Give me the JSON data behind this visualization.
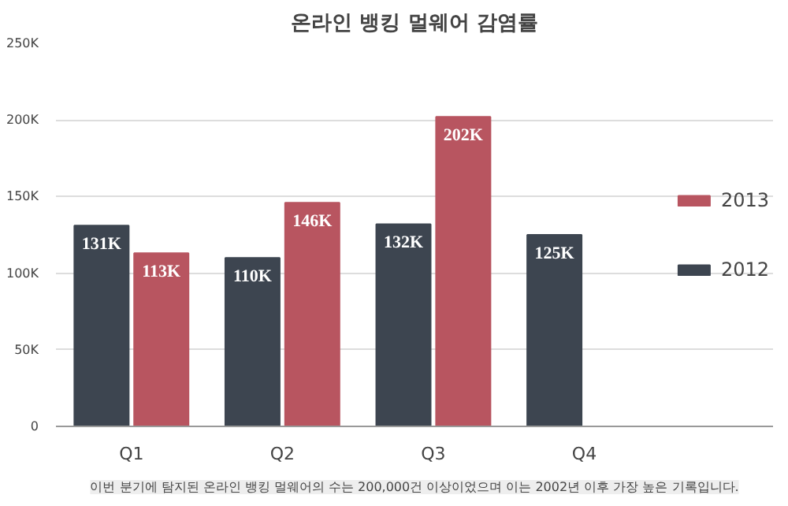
{
  "chart_data": {
    "type": "bar",
    "title": "온라인 뱅킹 멀웨어 감염률",
    "categories": [
      "Q1",
      "Q2",
      "Q3",
      "Q4"
    ],
    "series": [
      {
        "name": "2012",
        "color": "#3d4550",
        "values": [
          131000,
          110000,
          132000,
          125000
        ],
        "value_labels": [
          "131K",
          "110K",
          "132K",
          "125K"
        ]
      },
      {
        "name": "2013",
        "color": "#b85560",
        "values": [
          113000,
          146000,
          202000,
          null
        ],
        "value_labels": [
          "113K",
          "146K",
          "202K",
          null
        ]
      }
    ],
    "ylim": [
      0,
      250000
    ],
    "yticks": [
      {
        "value": 0,
        "label": "0"
      },
      {
        "value": 50000,
        "label": "50K"
      },
      {
        "value": 100000,
        "label": "100K"
      },
      {
        "value": 150000,
        "label": "150K"
      },
      {
        "value": 200000,
        "label": "200K"
      },
      {
        "value": 250000,
        "label": "250K"
      }
    ],
    "grid": "y",
    "legend": "right",
    "annotations": [
      "이번 분기에 탐지된 온라인 뱅킹 멀웨어의 수는 200,000건 이상이었으며 이는 2002년 이후 가장 높은 기록입니다."
    ]
  }
}
